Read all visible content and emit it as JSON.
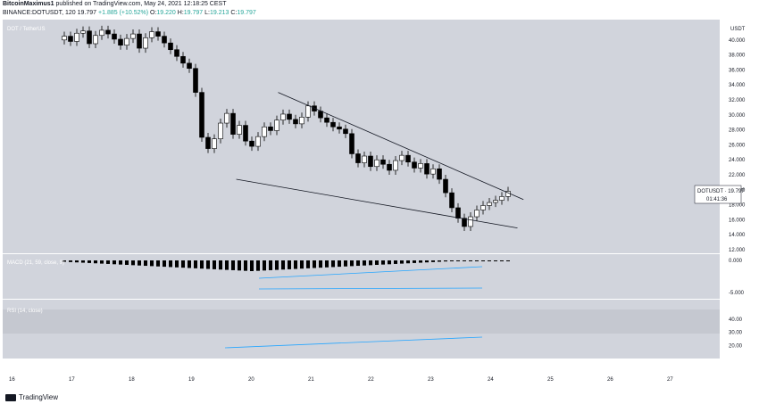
{
  "header": {
    "author": "BitcoinMaximus1",
    "published": "published on TradingView.com, May 24, 2021 12:18:25 CEST",
    "line2_prefix": "BINANCE:DOTUSDT, 120",
    "price": "19.797",
    "change": "+1.885 (+10.52%)",
    "o_label": "O:",
    "o_val": "19.220",
    "h_label": "H:",
    "h_val": "19.797",
    "l_label": "L:",
    "l_val": "19.213",
    "c_label": "C:",
    "c_val": "19.797"
  },
  "footer": {
    "brand": "TradingView"
  },
  "colors": {
    "plot_bg": "#d1d4dc",
    "candle_up": "#ffffff",
    "candle_down": "#000000",
    "wick": "#000000",
    "trend": "#131722",
    "divergence": "#26a6ff",
    "label_bg": "#ffffff"
  },
  "chart_data": {
    "type": "candlestick",
    "symbol": "DOT / TetherUS",
    "price_axis": {
      "ticks": [
        "40.000",
        "38.000",
        "36.000",
        "34.000",
        "32.000",
        "30.000",
        "28.000",
        "26.000",
        "24.000",
        "22.000",
        "20.000",
        "18.000",
        "16.000",
        "14.000",
        "12.000"
      ],
      "unit": "USDT",
      "range": [
        12,
        42
      ]
    },
    "time_axis": [
      "16",
      "17",
      "18",
      "19",
      "20",
      "21",
      "22",
      "23",
      "24",
      "25",
      "26",
      "27"
    ],
    "last_price_label": {
      "symbol": "DOTUSDT",
      "price": "19.797",
      "countdown": "01:41:36"
    },
    "candles_close": [
      40.5,
      39.8,
      40.9,
      41.2,
      39.5,
      40.6,
      41.3,
      40.8,
      40.1,
      39.3,
      40.2,
      40.8,
      38.9,
      40.3,
      41.1,
      40.5,
      39.6,
      38.7,
      37.8,
      36.9,
      36.2,
      33.0,
      27.0,
      25.5,
      26.8,
      28.9,
      30.2,
      27.4,
      28.6,
      26.5,
      25.8,
      27.1,
      28.4,
      27.9,
      29.3,
      30.1,
      29.4,
      28.8,
      29.7,
      31.2,
      30.5,
      29.6,
      29.0,
      28.4,
      28.1,
      27.5,
      24.8,
      23.6,
      24.5,
      23.1,
      24.0,
      23.4,
      22.6,
      23.9,
      24.6,
      23.7,
      22.9,
      23.5,
      22.1,
      22.8,
      21.4,
      19.6,
      17.6,
      16.2,
      15.1,
      16.4,
      17.3,
      17.9,
      18.3,
      18.6,
      19.1,
      19.8
    ],
    "trendlines": {
      "upper": [
        [
          20.5,
          33.0
        ],
        [
          24.6,
          18.7
        ]
      ],
      "lower": [
        [
          19.8,
          21.4
        ],
        [
          24.5,
          14.9
        ]
      ]
    },
    "macd": {
      "label": "MACD (21, 59, close, 9)",
      "axis_ticks": [
        "0.000",
        "-5.000"
      ]
    },
    "rsi": {
      "label": "RSI (14, close)",
      "axis_ticks": [
        "40.00",
        "30.00",
        "20.00"
      ]
    }
  }
}
